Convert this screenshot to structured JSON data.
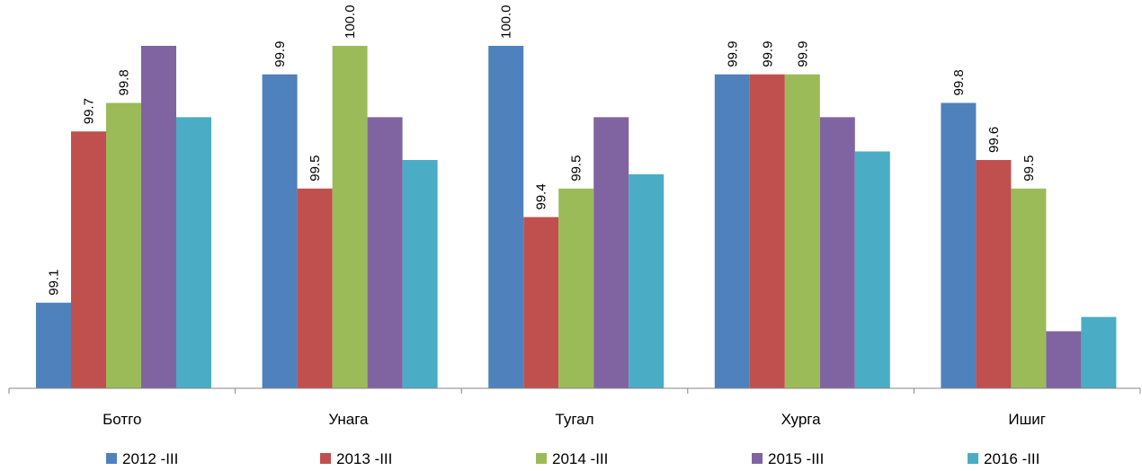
{
  "chart_data": {
    "type": "bar",
    "title": "",
    "xlabel": "",
    "ylabel": "",
    "categories": [
      "Ботго",
      "Унага",
      "Тугал",
      "Хурга",
      "Ишиг"
    ],
    "ylim": [
      98.8,
      100.0
    ],
    "grid": false,
    "legend_position": "bottom",
    "series": [
      {
        "name": "2012 -III",
        "color": "#4F81BD",
        "values": [
          99.1,
          99.9,
          100.0,
          99.9,
          99.8
        ],
        "labels": [
          "99.1",
          "99.9",
          "100.0",
          "99.9",
          "99.8"
        ]
      },
      {
        "name": "2013 -III",
        "color": "#C0504D",
        "values": [
          99.7,
          99.5,
          99.4,
          99.9,
          99.6
        ],
        "labels": [
          "99.7",
          "99.5",
          "99.4",
          "99.9",
          "99.6"
        ]
      },
      {
        "name": "2014 -III",
        "color": "#9BBB59",
        "values": [
          99.8,
          100.0,
          99.5,
          99.9,
          99.5
        ],
        "labels": [
          "99.8",
          "100.0",
          "99.5",
          "99.9",
          "99.5"
        ]
      },
      {
        "name": "2015 -III",
        "color": "#8064A2",
        "values": [
          100.0,
          99.75,
          99.75,
          99.75,
          99.0
        ],
        "labels": [
          "",
          "",
          "",
          "",
          ""
        ]
      },
      {
        "name": "2016 -III",
        "color": "#4BACC6",
        "values": [
          99.75,
          99.6,
          99.55,
          99.63,
          99.05
        ],
        "labels": [
          "",
          "",
          "",
          "",
          ""
        ]
      }
    ]
  }
}
